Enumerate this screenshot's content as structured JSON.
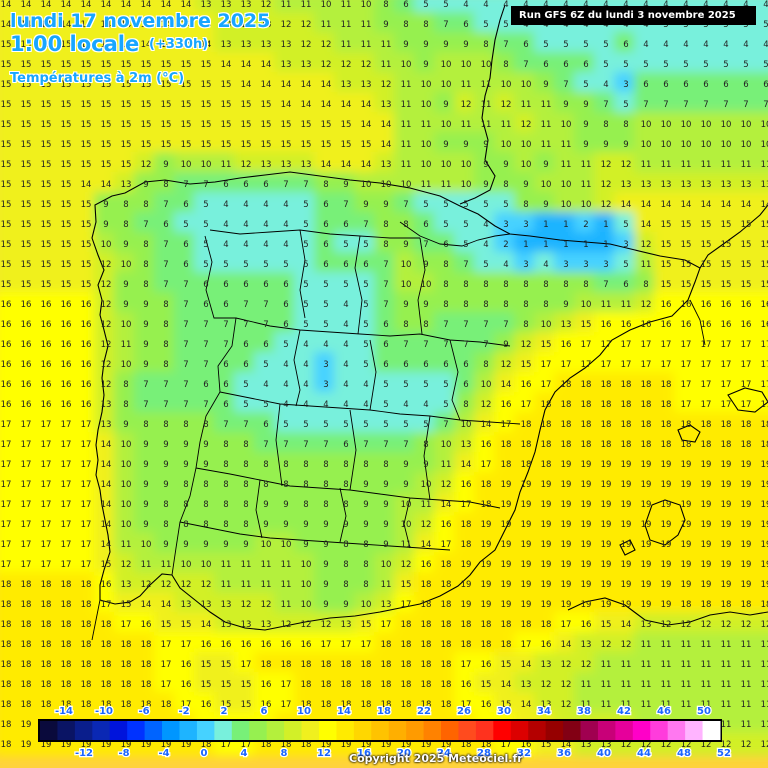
{
  "header": {
    "date": "lundi 17 novembre 2025",
    "time": "1:00 locale",
    "offset": "(+330h)",
    "variable": "Températures à 2m (°C)"
  },
  "run_info": "Run GFS 6Z du lundi 3 novembre 2025",
  "copyright": "Copyright 2025 Meteociel.fr",
  "legend": {
    "upper_labels": [
      "-14",
      "-10",
      "-6",
      "-2",
      "2",
      "6",
      "10",
      "14",
      "18",
      "22",
      "26",
      "30",
      "34",
      "38",
      "42",
      "46",
      "50"
    ],
    "lower_labels": [
      "-12",
      "-8",
      "-4",
      "0",
      "4",
      "8",
      "12",
      "16",
      "20",
      "24",
      "28",
      "32",
      "36",
      "40",
      "44",
      "48",
      "52"
    ],
    "colors": [
      "#0a0a3c",
      "#0a1464",
      "#0a1e8c",
      "#0a28b4",
      "#0014dc",
      "#0032ff",
      "#0064ff",
      "#0096ff",
      "#1eb4ff",
      "#46d2ff",
      "#78f0dc",
      "#78f078",
      "#96f050",
      "#b4f03c",
      "#d2f028",
      "#f0f01e",
      "#ffff00",
      "#ffeb00",
      "#ffd700",
      "#ffc300",
      "#ffaf00",
      "#ff9b00",
      "#ff8200",
      "#ff6400",
      "#ff4b1e",
      "#ff321e",
      "#ff0000",
      "#dc0000",
      "#b40000",
      "#960000",
      "#820014",
      "#a00050",
      "#c80078",
      "#e6009b",
      "#ff00c8",
      "#ff3cdc",
      "#ff78f0",
      "#ffb4ff",
      "#ffffff"
    ]
  },
  "grid_values": [
    [
      "14",
      "14",
      "14",
      "14",
      "14",
      "14",
      "14",
      "14",
      "14",
      "14",
      "13",
      "13",
      "13",
      "12",
      "11",
      "11",
      "10",
      "11",
      "10",
      "8",
      "6",
      "5",
      "5",
      "4",
      "4",
      "4",
      "4",
      "4",
      "4",
      "4",
      "4",
      "4",
      "4",
      "4",
      "4",
      "4",
      "4",
      "4",
      "4"
    ],
    [
      "14",
      "14",
      "14",
      "14",
      "14",
      "14",
      "14",
      "14",
      "14",
      "14",
      "14",
      "13",
      "13",
      "13",
      "12",
      "12",
      "11",
      "11",
      "11",
      "9",
      "8",
      "8",
      "7",
      "6",
      "5",
      "5",
      "4",
      "4",
      "4",
      "4",
      "4",
      "4",
      "4",
      "5",
      "5",
      "5",
      "5",
      "5",
      "5"
    ],
    [
      "15",
      "15",
      "15",
      "15",
      "15",
      "15",
      "15",
      "14",
      "14",
      "14",
      "14",
      "13",
      "13",
      "13",
      "13",
      "12",
      "12",
      "11",
      "11",
      "11",
      "9",
      "9",
      "9",
      "9",
      "8",
      "7",
      "6",
      "5",
      "5",
      "5",
      "5",
      "6",
      "4",
      "4",
      "4",
      "4",
      "4",
      "4",
      "4"
    ],
    [
      "15",
      "15",
      "15",
      "15",
      "15",
      "15",
      "15",
      "15",
      "15",
      "15",
      "15",
      "14",
      "14",
      "14",
      "13",
      "13",
      "12",
      "12",
      "12",
      "11",
      "10",
      "9",
      "10",
      "10",
      "10",
      "8",
      "7",
      "6",
      "6",
      "6",
      "5",
      "5",
      "5",
      "5",
      "5",
      "5",
      "5",
      "5",
      "5"
    ],
    [
      "15",
      "15",
      "15",
      "15",
      "15",
      "15",
      "15",
      "15",
      "15",
      "15",
      "15",
      "15",
      "14",
      "14",
      "14",
      "14",
      "14",
      "13",
      "13",
      "12",
      "11",
      "10",
      "10",
      "11",
      "11",
      "10",
      "10",
      "9",
      "7",
      "5",
      "4",
      "3",
      "6",
      "6",
      "6",
      "6",
      "6",
      "6",
      "6"
    ],
    [
      "15",
      "15",
      "15",
      "15",
      "15",
      "15",
      "15",
      "15",
      "15",
      "15",
      "15",
      "15",
      "15",
      "15",
      "14",
      "14",
      "14",
      "14",
      "14",
      "13",
      "11",
      "10",
      "9",
      "12",
      "11",
      "12",
      "11",
      "11",
      "9",
      "9",
      "7",
      "5",
      "7",
      "7",
      "7",
      "7",
      "7",
      "7",
      "7"
    ],
    [
      "15",
      "15",
      "15",
      "15",
      "15",
      "15",
      "15",
      "15",
      "15",
      "15",
      "15",
      "15",
      "15",
      "15",
      "15",
      "15",
      "15",
      "15",
      "14",
      "14",
      "11",
      "11",
      "10",
      "11",
      "11",
      "11",
      "12",
      "11",
      "10",
      "9",
      "8",
      "8",
      "10",
      "10",
      "10",
      "10",
      "10",
      "10",
      "10"
    ],
    [
      "15",
      "15",
      "15",
      "15",
      "15",
      "15",
      "15",
      "15",
      "15",
      "15",
      "15",
      "15",
      "15",
      "15",
      "15",
      "15",
      "15",
      "15",
      "15",
      "14",
      "11",
      "10",
      "9",
      "9",
      "9",
      "10",
      "10",
      "11",
      "11",
      "9",
      "9",
      "9",
      "10",
      "10",
      "10",
      "10",
      "10",
      "10",
      "10"
    ],
    [
      "15",
      "15",
      "15",
      "15",
      "15",
      "15",
      "15",
      "12",
      "9",
      "10",
      "10",
      "11",
      "12",
      "13",
      "13",
      "13",
      "14",
      "14",
      "14",
      "13",
      "11",
      "10",
      "10",
      "10",
      "9",
      "9",
      "10",
      "9",
      "11",
      "11",
      "12",
      "12",
      "11",
      "11",
      "11",
      "11",
      "11",
      "11",
      "11"
    ],
    [
      "15",
      "15",
      "15",
      "15",
      "14",
      "14",
      "13",
      "9",
      "8",
      "7",
      "7",
      "6",
      "6",
      "6",
      "7",
      "7",
      "8",
      "9",
      "10",
      "10",
      "10",
      "11",
      "11",
      "10",
      "9",
      "8",
      "9",
      "10",
      "10",
      "11",
      "12",
      "13",
      "13",
      "13",
      "13",
      "13",
      "13",
      "13",
      "13"
    ],
    [
      "15",
      "15",
      "15",
      "15",
      "15",
      "9",
      "8",
      "8",
      "7",
      "6",
      "5",
      "4",
      "4",
      "4",
      "4",
      "5",
      "6",
      "7",
      "9",
      "9",
      "7",
      "5",
      "5",
      "5",
      "5",
      "5",
      "8",
      "9",
      "10",
      "10",
      "12",
      "14",
      "14",
      "14",
      "14",
      "14",
      "14",
      "14",
      "14"
    ],
    [
      "15",
      "15",
      "15",
      "15",
      "15",
      "9",
      "8",
      "7",
      "6",
      "5",
      "5",
      "4",
      "4",
      "4",
      "4",
      "5",
      "6",
      "6",
      "7",
      "8",
      "8",
      "6",
      "5",
      "5",
      "4",
      "3",
      "3",
      "1",
      "1",
      "2",
      "1",
      "5",
      "14",
      "15",
      "15",
      "15",
      "15",
      "15",
      "15"
    ],
    [
      "15",
      "15",
      "15",
      "15",
      "15",
      "10",
      "9",
      "8",
      "7",
      "6",
      "5",
      "4",
      "4",
      "4",
      "4",
      "5",
      "6",
      "5",
      "5",
      "8",
      "9",
      "7",
      "6",
      "5",
      "4",
      "2",
      "1",
      "1",
      "1",
      "1",
      "1",
      "3",
      "12",
      "15",
      "15",
      "15",
      "15",
      "15",
      "15"
    ],
    [
      "15",
      "15",
      "15",
      "15",
      "15",
      "12",
      "10",
      "8",
      "7",
      "6",
      "5",
      "5",
      "5",
      "5",
      "5",
      "5",
      "6",
      "6",
      "6",
      "7",
      "10",
      "9",
      "8",
      "7",
      "5",
      "4",
      "3",
      "4",
      "3",
      "3",
      "3",
      "5",
      "11",
      "15",
      "15",
      "15",
      "15",
      "15",
      "15"
    ],
    [
      "15",
      "15",
      "15",
      "15",
      "15",
      "12",
      "9",
      "8",
      "7",
      "7",
      "6",
      "6",
      "6",
      "6",
      "6",
      "5",
      "5",
      "5",
      "5",
      "7",
      "10",
      "10",
      "8",
      "8",
      "8",
      "8",
      "8",
      "8",
      "8",
      "8",
      "7",
      "6",
      "8",
      "15",
      "15",
      "15",
      "15",
      "15",
      "15"
    ],
    [
      "16",
      "16",
      "16",
      "16",
      "16",
      "12",
      "9",
      "9",
      "8",
      "7",
      "6",
      "6",
      "7",
      "7",
      "6",
      "5",
      "5",
      "4",
      "5",
      "7",
      "9",
      "9",
      "8",
      "8",
      "8",
      "8",
      "8",
      "8",
      "9",
      "10",
      "11",
      "11",
      "12",
      "16",
      "16",
      "16",
      "16",
      "16",
      "16"
    ],
    [
      "16",
      "16",
      "16",
      "16",
      "16",
      "12",
      "10",
      "9",
      "8",
      "7",
      "7",
      "7",
      "7",
      "7",
      "6",
      "5",
      "5",
      "4",
      "5",
      "6",
      "8",
      "8",
      "7",
      "7",
      "7",
      "7",
      "8",
      "10",
      "13",
      "15",
      "16",
      "16",
      "16",
      "16",
      "16",
      "16",
      "16",
      "16",
      "16"
    ],
    [
      "16",
      "16",
      "16",
      "16",
      "16",
      "12",
      "11",
      "9",
      "8",
      "7",
      "7",
      "7",
      "6",
      "6",
      "5",
      "4",
      "4",
      "4",
      "5",
      "6",
      "7",
      "7",
      "7",
      "7",
      "7",
      "9",
      "12",
      "15",
      "16",
      "17",
      "17",
      "17",
      "17",
      "17",
      "17",
      "17",
      "17",
      "17",
      "17"
    ],
    [
      "16",
      "16",
      "16",
      "16",
      "16",
      "12",
      "10",
      "9",
      "8",
      "7",
      "7",
      "6",
      "6",
      "5",
      "4",
      "4",
      "3",
      "4",
      "5",
      "6",
      "6",
      "6",
      "6",
      "6",
      "8",
      "12",
      "15",
      "17",
      "17",
      "17",
      "17",
      "17",
      "17",
      "17",
      "17",
      "17",
      "17",
      "17",
      "17"
    ],
    [
      "16",
      "16",
      "16",
      "16",
      "16",
      "12",
      "8",
      "7",
      "7",
      "7",
      "6",
      "6",
      "5",
      "4",
      "4",
      "4",
      "3",
      "4",
      "4",
      "5",
      "5",
      "5",
      "5",
      "6",
      "10",
      "14",
      "16",
      "17",
      "18",
      "18",
      "18",
      "18",
      "18",
      "18",
      "17",
      "17",
      "17",
      "17",
      "17"
    ],
    [
      "16",
      "16",
      "16",
      "16",
      "16",
      "13",
      "8",
      "7",
      "7",
      "7",
      "7",
      "6",
      "5",
      "5",
      "4",
      "4",
      "4",
      "4",
      "4",
      "5",
      "4",
      "4",
      "5",
      "8",
      "12",
      "16",
      "17",
      "18",
      "18",
      "18",
      "18",
      "18",
      "18",
      "18",
      "17",
      "17",
      "17",
      "17",
      "17"
    ],
    [
      "17",
      "17",
      "17",
      "17",
      "17",
      "13",
      "9",
      "8",
      "8",
      "8",
      "8",
      "7",
      "7",
      "6",
      "5",
      "5",
      "5",
      "5",
      "5",
      "5",
      "5",
      "5",
      "7",
      "10",
      "14",
      "17",
      "18",
      "18",
      "18",
      "18",
      "18",
      "18",
      "18",
      "18",
      "18",
      "18",
      "18",
      "18",
      "18"
    ],
    [
      "17",
      "17",
      "17",
      "17",
      "17",
      "14",
      "10",
      "9",
      "9",
      "9",
      "9",
      "8",
      "8",
      "7",
      "7",
      "7",
      "7",
      "6",
      "7",
      "7",
      "7",
      "8",
      "10",
      "13",
      "16",
      "18",
      "18",
      "18",
      "18",
      "18",
      "18",
      "18",
      "18",
      "18",
      "18",
      "18",
      "18",
      "18",
      "18"
    ],
    [
      "17",
      "17",
      "17",
      "17",
      "17",
      "14",
      "10",
      "9",
      "9",
      "9",
      "9",
      "8",
      "8",
      "8",
      "8",
      "8",
      "8",
      "8",
      "8",
      "8",
      "9",
      "9",
      "11",
      "14",
      "17",
      "18",
      "18",
      "18",
      "19",
      "19",
      "19",
      "19",
      "19",
      "19",
      "19",
      "19",
      "19",
      "19",
      "19"
    ],
    [
      "17",
      "17",
      "17",
      "17",
      "17",
      "14",
      "10",
      "9",
      "9",
      "8",
      "8",
      "8",
      "8",
      "8",
      "8",
      "8",
      "8",
      "8",
      "9",
      "9",
      "9",
      "10",
      "12",
      "16",
      "18",
      "19",
      "19",
      "19",
      "19",
      "19",
      "19",
      "19",
      "19",
      "19",
      "19",
      "19",
      "19",
      "19",
      "19"
    ],
    [
      "17",
      "17",
      "17",
      "17",
      "17",
      "14",
      "10",
      "9",
      "8",
      "8",
      "8",
      "8",
      "8",
      "9",
      "9",
      "8",
      "8",
      "8",
      "9",
      "9",
      "10",
      "11",
      "14",
      "17",
      "18",
      "19",
      "19",
      "19",
      "19",
      "19",
      "19",
      "19",
      "19",
      "19",
      "19",
      "19",
      "19",
      "19",
      "19"
    ],
    [
      "17",
      "17",
      "17",
      "17",
      "17",
      "14",
      "10",
      "9",
      "8",
      "8",
      "8",
      "8",
      "8",
      "9",
      "9",
      "9",
      "9",
      "9",
      "9",
      "9",
      "10",
      "12",
      "16",
      "18",
      "19",
      "19",
      "19",
      "19",
      "19",
      "19",
      "19",
      "19",
      "19",
      "19",
      "19",
      "19",
      "19",
      "19",
      "19"
    ],
    [
      "17",
      "17",
      "17",
      "17",
      "17",
      "14",
      "11",
      "10",
      "9",
      "9",
      "9",
      "9",
      "9",
      "10",
      "10",
      "9",
      "9",
      "8",
      "8",
      "9",
      "11",
      "14",
      "17",
      "18",
      "19",
      "19",
      "19",
      "19",
      "19",
      "19",
      "19",
      "19",
      "19",
      "19",
      "19",
      "19",
      "19",
      "19",
      "19"
    ],
    [
      "17",
      "17",
      "17",
      "17",
      "17",
      "15",
      "12",
      "11",
      "11",
      "10",
      "10",
      "11",
      "11",
      "11",
      "11",
      "10",
      "9",
      "8",
      "8",
      "10",
      "12",
      "16",
      "18",
      "19",
      "19",
      "19",
      "19",
      "19",
      "19",
      "19",
      "19",
      "19",
      "19",
      "19",
      "19",
      "19",
      "19",
      "19",
      "19"
    ],
    [
      "18",
      "18",
      "18",
      "18",
      "18",
      "16",
      "13",
      "12",
      "12",
      "12",
      "12",
      "11",
      "11",
      "11",
      "11",
      "10",
      "9",
      "8",
      "8",
      "11",
      "15",
      "18",
      "18",
      "19",
      "19",
      "19",
      "19",
      "19",
      "19",
      "19",
      "19",
      "19",
      "19",
      "19",
      "19",
      "19",
      "19",
      "19",
      "19"
    ],
    [
      "18",
      "18",
      "18",
      "18",
      "18",
      "17",
      "15",
      "14",
      "14",
      "13",
      "13",
      "13",
      "12",
      "12",
      "11",
      "10",
      "9",
      "9",
      "10",
      "13",
      "17",
      "18",
      "18",
      "19",
      "19",
      "19",
      "19",
      "19",
      "19",
      "19",
      "19",
      "19",
      "19",
      "19",
      "18",
      "18",
      "18",
      "18",
      "18"
    ],
    [
      "18",
      "18",
      "18",
      "18",
      "18",
      "18",
      "17",
      "16",
      "15",
      "15",
      "14",
      "13",
      "13",
      "13",
      "12",
      "12",
      "12",
      "13",
      "15",
      "17",
      "18",
      "18",
      "18",
      "18",
      "18",
      "18",
      "18",
      "18",
      "17",
      "16",
      "15",
      "14",
      "13",
      "12",
      "12",
      "12",
      "12",
      "12",
      "12"
    ],
    [
      "18",
      "18",
      "18",
      "18",
      "18",
      "18",
      "18",
      "18",
      "17",
      "17",
      "16",
      "16",
      "16",
      "16",
      "16",
      "16",
      "17",
      "17",
      "17",
      "18",
      "18",
      "18",
      "18",
      "18",
      "18",
      "18",
      "17",
      "16",
      "14",
      "13",
      "12",
      "12",
      "11",
      "11",
      "11",
      "11",
      "11",
      "11",
      "11"
    ],
    [
      "18",
      "18",
      "18",
      "18",
      "18",
      "18",
      "18",
      "18",
      "17",
      "16",
      "15",
      "15",
      "17",
      "18",
      "18",
      "18",
      "18",
      "18",
      "18",
      "18",
      "18",
      "18",
      "18",
      "17",
      "16",
      "15",
      "14",
      "13",
      "12",
      "12",
      "11",
      "11",
      "11",
      "11",
      "11",
      "11",
      "11",
      "11",
      "11"
    ],
    [
      "18",
      "18",
      "18",
      "18",
      "18",
      "18",
      "18",
      "18",
      "17",
      "16",
      "15",
      "15",
      "15",
      "16",
      "17",
      "18",
      "18",
      "18",
      "18",
      "18",
      "18",
      "18",
      "18",
      "16",
      "15",
      "14",
      "13",
      "12",
      "12",
      "11",
      "11",
      "11",
      "11",
      "11",
      "11",
      "11",
      "11",
      "11",
      "11"
    ],
    [
      "18",
      "18",
      "18",
      "18",
      "18",
      "18",
      "18",
      "18",
      "18",
      "17",
      "16",
      "15",
      "15",
      "16",
      "17",
      "18",
      "18",
      "18",
      "18",
      "18",
      "18",
      "18",
      "18",
      "17",
      "16",
      "15",
      "14",
      "13",
      "12",
      "11",
      "11",
      "11",
      "11",
      "11",
      "11",
      "11",
      "11",
      "11",
      "11"
    ],
    [
      "18",
      "19",
      "19",
      "19",
      "19",
      "19",
      "19",
      "19",
      "19",
      "18",
      "17",
      "16",
      "16",
      "17",
      "18",
      "18",
      "18",
      "18",
      "18",
      "18",
      "18",
      "18",
      "18",
      "18",
      "17",
      "16",
      "15",
      "14",
      "13",
      "13",
      "12",
      "12",
      "11",
      "11",
      "11",
      "11",
      "11",
      "11",
      "11"
    ],
    [
      "18",
      "19",
      "19",
      "19",
      "19",
      "19",
      "19",
      "19",
      "19",
      "19",
      "18",
      "17",
      "17",
      "18",
      "18",
      "18",
      "19",
      "19",
      "19",
      "19",
      "19",
      "19",
      "19",
      "18",
      "18",
      "17",
      "16",
      "15",
      "14",
      "13",
      "13",
      "12",
      "12",
      "12",
      "12",
      "12",
      "12",
      "12",
      "12"
    ]
  ]
}
